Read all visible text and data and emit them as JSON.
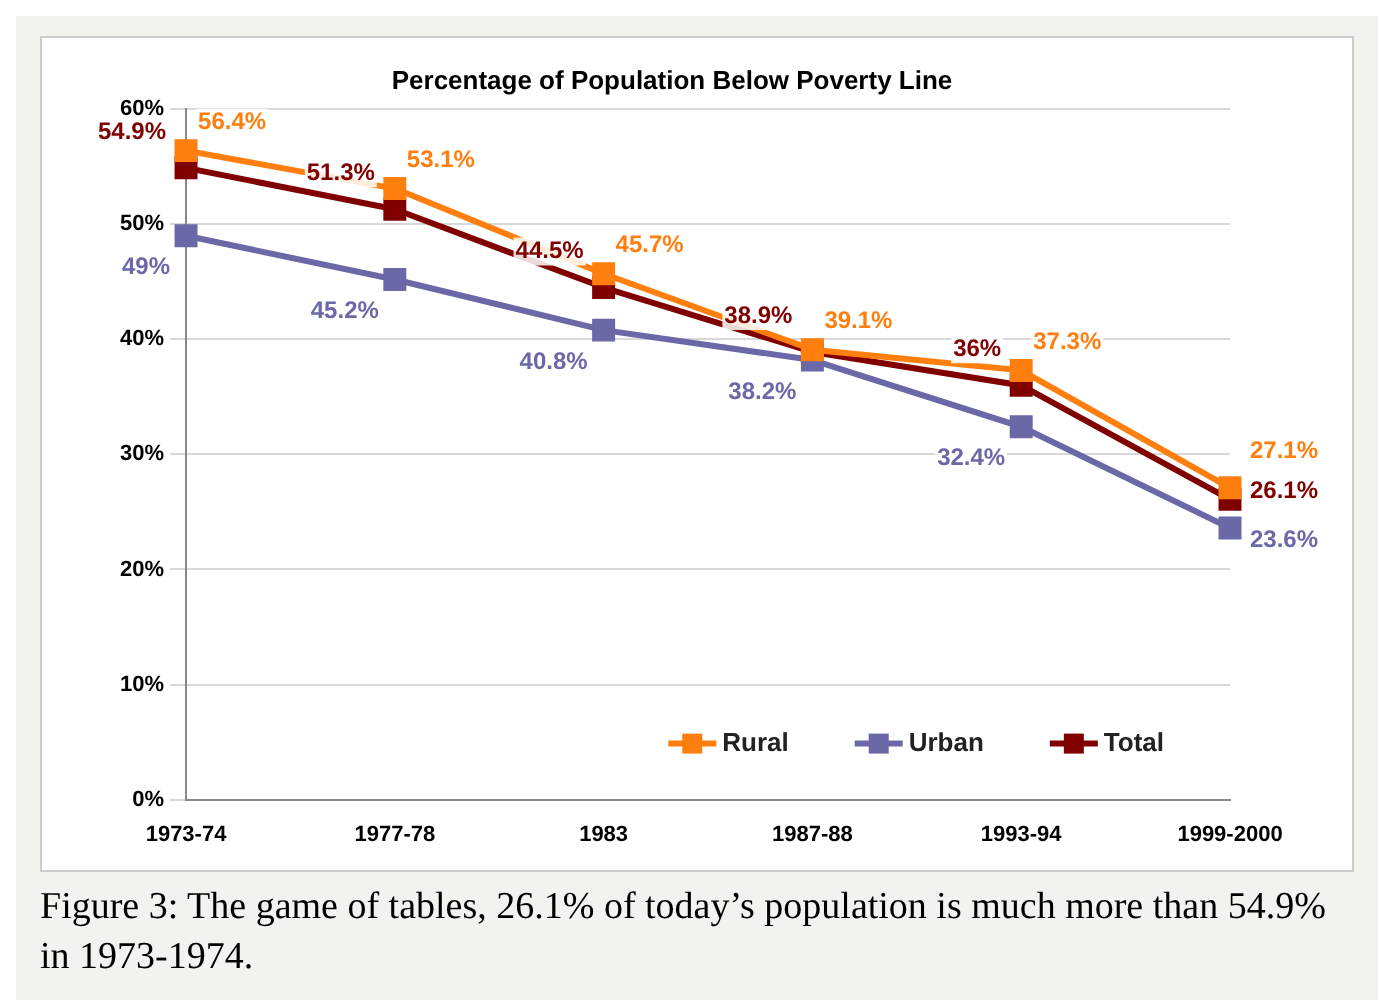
{
  "chart_data": {
    "type": "line",
    "title": "Percentage of Population Below Poverty Line",
    "categories": [
      "1973-74",
      "1977-78",
      "1983",
      "1987-88",
      "1993-94",
      "1999-2000"
    ],
    "series": [
      {
        "name": "Rural",
        "color": "#ff7f0e",
        "values": [
          56.4,
          53.1,
          45.7,
          39.1,
          37.3,
          27.1
        ],
        "value_labels": [
          "56.4%",
          "53.1%",
          "45.7%",
          "39.1%",
          "37.3%",
          "27.1%"
        ]
      },
      {
        "name": "Urban",
        "color": "#6b68a8",
        "values": [
          49,
          45.2,
          40.8,
          38.2,
          32.4,
          23.6
        ],
        "value_labels": [
          "49%",
          "45.2%",
          "40.8%",
          "38.2%",
          "32.4%",
          "23.6%"
        ]
      },
      {
        "name": "Total",
        "color": "#800000",
        "values": [
          54.9,
          51.3,
          44.5,
          38.9,
          36,
          26.1
        ],
        "value_labels": [
          "54.9%",
          "51.3%",
          "44.5%",
          "38.9%",
          "36%",
          "26.1%"
        ]
      }
    ],
    "ylim": [
      0,
      60
    ],
    "yticks": [
      {
        "value": 0,
        "label": "0%"
      },
      {
        "value": 10,
        "label": "10%"
      },
      {
        "value": 20,
        "label": "20%"
      },
      {
        "value": 30,
        "label": "30%"
      },
      {
        "value": 40,
        "label": "40%"
      },
      {
        "value": 50,
        "label": "50%"
      },
      {
        "value": 60,
        "label": "60%"
      }
    ],
    "grid": "y",
    "legend": "bottom right",
    "marker": "square",
    "line_style": "solid",
    "annotations": [
      "Figure 3: The game of tables, 26.1% of today’s population is much more than 54.9% in 1973-1974."
    ]
  }
}
